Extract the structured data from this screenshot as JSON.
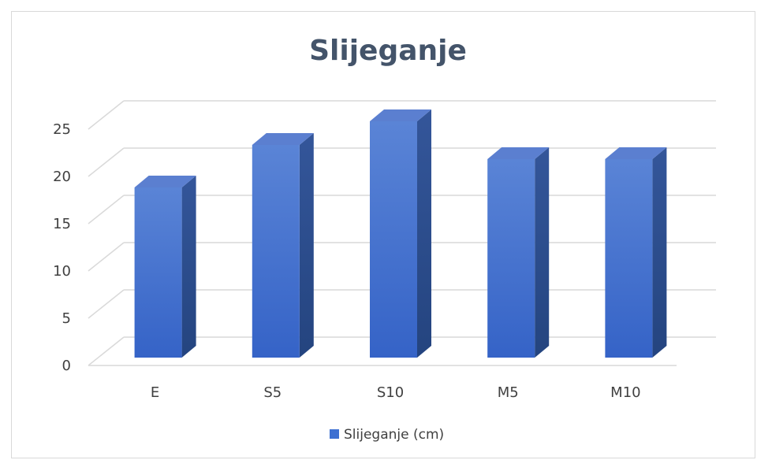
{
  "chart_data": {
    "type": "bar",
    "title": "Slijeganje",
    "categories": [
      "E",
      "S5",
      "S10",
      "M5",
      "M10"
    ],
    "series": [
      {
        "name": "Slijeganje (cm)",
        "values": [
          18,
          22.5,
          25,
          21,
          21
        ]
      }
    ],
    "yticks": [
      "0",
      "5",
      "10",
      "15",
      "20",
      "25"
    ],
    "ylim": [
      0,
      27.5
    ],
    "grid": true,
    "legend": "bottom",
    "style": "3d-column",
    "colors": {
      "bar_top": "#5b7fd0",
      "bar_front": "#3c6fd2",
      "bar_side": "#2c4f8c",
      "grid": "#d9d9d9",
      "title": "#44546a"
    }
  }
}
